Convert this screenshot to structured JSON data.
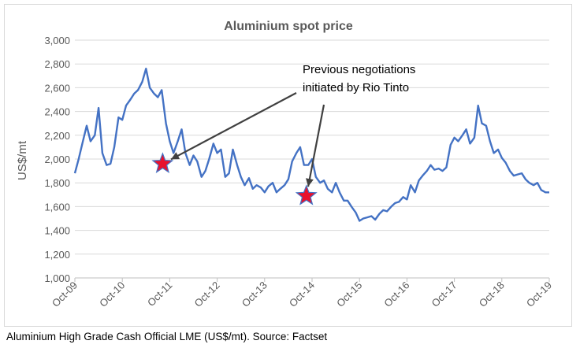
{
  "chart_data": {
    "type": "line",
    "title": "Aluminium spot price",
    "xlabel": "",
    "ylabel": "US$/mt",
    "ylim": [
      1000,
      3000
    ],
    "yticks": [
      1000,
      1200,
      1400,
      1600,
      1800,
      2000,
      2200,
      2400,
      2600,
      2800,
      3000
    ],
    "ytick_labels": [
      "1,000",
      "1,200",
      "1,400",
      "1,600",
      "1,800",
      "2,000",
      "2,200",
      "2,400",
      "2,600",
      "2,800",
      "3,000"
    ],
    "xlim": [
      2009.75,
      2019.75
    ],
    "xticks": [
      2009.75,
      2010.75,
      2011.75,
      2012.75,
      2013.75,
      2014.75,
      2015.75,
      2016.75,
      2017.75,
      2018.75,
      2019.75
    ],
    "xtick_labels": [
      "Oct-09",
      "Oct-10",
      "Oct-11",
      "Oct-12",
      "Oct-13",
      "Oct-14",
      "Oct-15",
      "Oct-16",
      "Oct-17",
      "Oct-18",
      "Oct-19"
    ],
    "grid": "horizontal",
    "legend": "none",
    "line_color": "#4472c4",
    "series": [
      {
        "x": [
          2009.75,
          2009.83,
          2009.92,
          2010.0,
          2010.08,
          2010.17,
          2010.25,
          2010.33,
          2010.42,
          2010.5,
          2010.58,
          2010.67,
          2010.75,
          2010.83,
          2010.92,
          2011.0,
          2011.08,
          2011.17,
          2011.25,
          2011.33,
          2011.42,
          2011.5,
          2011.58,
          2011.67,
          2011.75,
          2011.83,
          2011.92,
          2012.0,
          2012.08,
          2012.17,
          2012.25,
          2012.33,
          2012.42,
          2012.5,
          2012.58,
          2012.67,
          2012.75,
          2012.83,
          2012.92,
          2013.0,
          2013.08,
          2013.17,
          2013.25,
          2013.33,
          2013.42,
          2013.5,
          2013.58,
          2013.67,
          2013.75,
          2013.83,
          2013.92,
          2014.0,
          2014.08,
          2014.17,
          2014.25,
          2014.33,
          2014.42,
          2014.5,
          2014.58,
          2014.67,
          2014.75,
          2014.83,
          2014.92,
          2015.0,
          2015.08,
          2015.17,
          2015.25,
          2015.33,
          2015.42,
          2015.5,
          2015.58,
          2015.67,
          2015.75,
          2015.83,
          2015.92,
          2016.0,
          2016.08,
          2016.17,
          2016.25,
          2016.33,
          2016.42,
          2016.5,
          2016.58,
          2016.67,
          2016.75,
          2016.83,
          2016.92,
          2017.0,
          2017.08,
          2017.17,
          2017.25,
          2017.33,
          2017.42,
          2017.5,
          2017.58,
          2017.67,
          2017.75,
          2017.83,
          2017.92,
          2018.0,
          2018.08,
          2018.17,
          2018.25,
          2018.33,
          2018.42,
          2018.5,
          2018.58,
          2018.67,
          2018.75,
          2018.83,
          2018.92,
          2019.0,
          2019.08,
          2019.17,
          2019.25,
          2019.33,
          2019.42,
          2019.5,
          2019.58,
          2019.67,
          2019.75
        ],
        "y": [
          1880,
          2000,
          2150,
          2280,
          2150,
          2200,
          2430,
          2050,
          1950,
          1960,
          2100,
          2350,
          2330,
          2450,
          2500,
          2550,
          2580,
          2650,
          2760,
          2600,
          2550,
          2520,
          2580,
          2300,
          2150,
          2050,
          2150,
          2250,
          2050,
          1950,
          2030,
          1980,
          1850,
          1900,
          2000,
          2130,
          2050,
          2080,
          1850,
          1880,
          2080,
          1950,
          1850,
          1780,
          1840,
          1750,
          1780,
          1760,
          1720,
          1770,
          1800,
          1720,
          1750,
          1780,
          1830,
          1980,
          2050,
          2100,
          1950,
          1950,
          2000,
          1850,
          1800,
          1820,
          1750,
          1720,
          1800,
          1720,
          1650,
          1650,
          1600,
          1550,
          1480,
          1500,
          1510,
          1520,
          1490,
          1540,
          1570,
          1560,
          1600,
          1630,
          1640,
          1680,
          1660,
          1780,
          1720,
          1820,
          1860,
          1900,
          1950,
          1910,
          1920,
          1900,
          1930,
          2120,
          2180,
          2150,
          2200,
          2250,
          2130,
          2180,
          2450,
          2300,
          2280,
          2150,
          2050,
          2080,
          2010,
          1970,
          1900,
          1860,
          1870,
          1880,
          1830,
          1800,
          1780,
          1800,
          1740,
          1720,
          1720
        ]
      }
    ],
    "markers": [
      {
        "label": "star-2012",
        "x": 2011.6,
        "y": 1960
      },
      {
        "label": "star-2015",
        "x": 2014.63,
        "y": 1690
      }
    ],
    "annotation": {
      "text_lines": [
        "Previous negotiations",
        "initiated by Rio Tinto"
      ]
    }
  },
  "source_note": "Aluminium High Grade Cash Official LME (US$/mt). Source: Factset"
}
